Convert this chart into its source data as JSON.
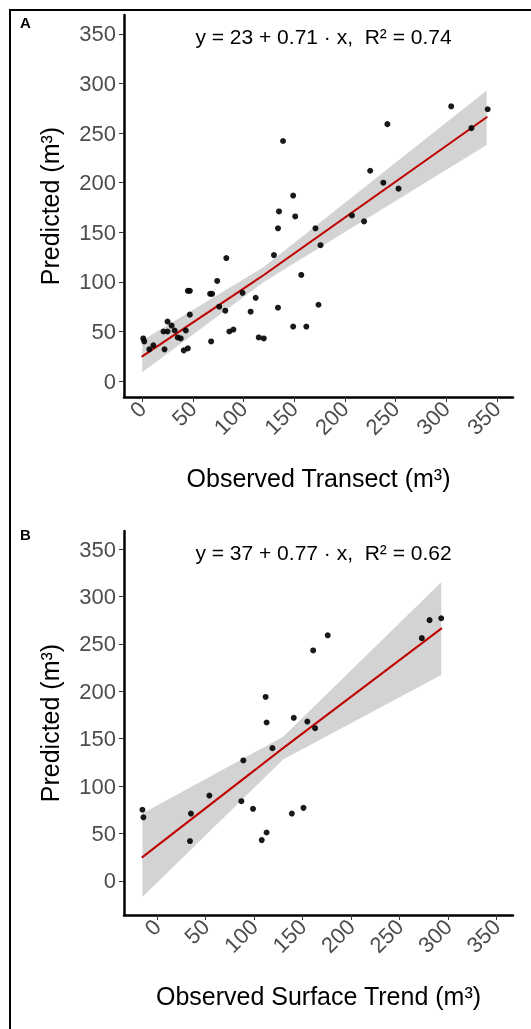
{
  "chart_data": [
    {
      "type": "scatter",
      "title": "A",
      "annotations": [
        "y = 23 + 0.71 · x,  R² = 0.74"
      ],
      "xlabel": "Observed Transect (m³)",
      "ylabel": "Predicted (m³)",
      "xlim": [
        -18,
        366
      ],
      "ylim": [
        -16,
        369
      ],
      "xticks": [
        0,
        50,
        100,
        150,
        200,
        250,
        300,
        350
      ],
      "yticks": [
        0,
        50,
        100,
        150,
        200,
        250,
        300,
        350
      ],
      "grid": false,
      "series": [
        {
          "color": "#000000",
          "marker": "circle",
          "x": [
            305,
            341,
            325,
            242,
            139,
            225,
            238,
            253,
            149,
            135,
            151,
            207,
            219,
            134,
            171,
            176,
            130,
            83,
            157,
            74,
            45,
            47,
            67,
            69,
            99,
            112,
            76,
            82,
            107,
            134,
            174,
            47,
            25,
            29,
            32,
            21,
            25,
            43,
            35,
            38,
            1,
            2,
            7,
            11,
            22,
            41,
            45,
            68,
            86,
            90,
            149,
            162,
            115,
            120
          ],
          "values": [
            277,
            274,
            255,
            259,
            242,
            212,
            200,
            194,
            187,
            171,
            166,
            167,
            161,
            154,
            154,
            137,
            127,
            124,
            107,
            101,
            91,
            91,
            88,
            88,
            89,
            84,
            75,
            71,
            70,
            74,
            77,
            67,
            60,
            56,
            51,
            50,
            50,
            51,
            44,
            43,
            43,
            40,
            32,
            36,
            32,
            31,
            33,
            40,
            50,
            52,
            55,
            55,
            44,
            43
          ]
        },
        {
          "type": "line",
          "color": "#c00000",
          "line_style": "solid",
          "marker": "none",
          "x": [
            0,
            120,
            340
          ],
          "values": [
            25,
            107,
            266
          ],
          "lower": [
            9,
            100,
            238
          ],
          "upper": [
            41,
            115,
            293
          ]
        }
      ]
    },
    {
      "type": "scatter",
      "title": "B",
      "annotations": [
        "y = 37 + 0.77 · x,  R² = 0.62"
      ],
      "xlabel": "Observed Surface Trend (m³)",
      "ylabel": "Predicted (m³)",
      "xlim": [
        -34,
        367
      ],
      "ylim": [
        -36,
        369
      ],
      "xticks": [
        0,
        50,
        100,
        150,
        200,
        250,
        300,
        350
      ],
      "yticks": [
        0,
        50,
        100,
        150,
        200,
        250,
        300,
        350
      ],
      "grid": false,
      "series": [
        {
          "color": "#000000",
          "marker": "circle",
          "x": [
            293,
            281,
            273,
            176,
            161,
            112,
            113,
            141,
            155,
            163,
            119,
            89,
            87,
            54,
            99,
            35,
            -15,
            -14,
            34,
            108,
            113,
            139,
            151
          ],
          "values": [
            277,
            275,
            256,
            259,
            243,
            194,
            167,
            172,
            168,
            161,
            140,
            127,
            84,
            90,
            76,
            71,
            75,
            67,
            42,
            43,
            51,
            71,
            77
          ]
        },
        {
          "type": "line",
          "color": "#c00000",
          "line_style": "solid",
          "marker": "none",
          "x": [
            -15,
            130,
            293
          ],
          "values": [
            25,
            140,
            266
          ],
          "lower": [
            -17,
            128,
            217
          ],
          "upper": [
            71,
            152,
            315
          ]
        }
      ]
    }
  ]
}
